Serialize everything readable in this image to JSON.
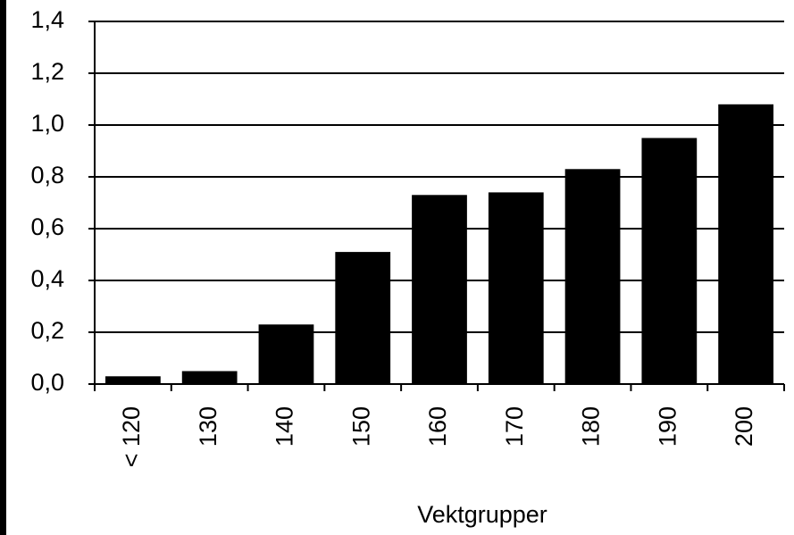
{
  "chart_data": {
    "type": "bar",
    "x_label": "Vektgrupper",
    "categories": [
      "< 120",
      "130",
      "140",
      "150",
      "160",
      "170",
      "180",
      "190",
      "200"
    ],
    "values": [
      0.03,
      0.05,
      0.23,
      0.51,
      0.73,
      0.74,
      0.83,
      0.95,
      1.08
    ],
    "color": "#000000",
    "ylim": [
      0,
      1.4
    ],
    "yticks": [
      {
        "value": 0,
        "label": "0,0"
      },
      {
        "value": 0.2,
        "label": "0,2"
      },
      {
        "value": 0.4,
        "label": "0,4"
      },
      {
        "value": 0.6,
        "label": "0,6"
      },
      {
        "value": 0.8,
        "label": "0,8"
      },
      {
        "value": 1.0,
        "label": "1,0"
      },
      {
        "value": 1.2,
        "label": "1,2"
      },
      {
        "value": 1.4,
        "label": "1,4"
      }
    ],
    "grid": true
  }
}
